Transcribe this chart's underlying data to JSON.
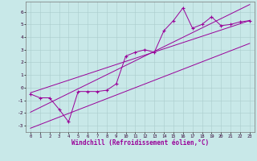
{
  "scatter_x": [
    0,
    1,
    2,
    3,
    4,
    5,
    6,
    7,
    8,
    9,
    10,
    11,
    12,
    13,
    14,
    15,
    16,
    17,
    18,
    19,
    20,
    21,
    22,
    23
  ],
  "scatter_y": [
    -0.5,
    -0.8,
    -0.8,
    -1.7,
    -2.7,
    -0.3,
    -0.3,
    -0.3,
    -0.2,
    0.3,
    2.5,
    2.8,
    3.0,
    2.8,
    4.5,
    5.3,
    6.3,
    4.7,
    5.0,
    5.6,
    4.9,
    5.0,
    5.2,
    5.3
  ],
  "line_color": "#990099",
  "bg_color": "#c8e8e8",
  "grid_color": "#aacccc",
  "xlabel": "Windchill (Refroidissement éolien,°C)",
  "xlabel_fontsize": 5.5,
  "xlim": [
    -0.5,
    23.5
  ],
  "ylim": [
    -3.5,
    6.8
  ],
  "yticks": [
    -3,
    -2,
    -1,
    0,
    1,
    2,
    3,
    4,
    5,
    6
  ],
  "xticks": [
    0,
    1,
    2,
    3,
    4,
    5,
    6,
    7,
    8,
    9,
    10,
    11,
    12,
    13,
    14,
    15,
    16,
    17,
    18,
    19,
    20,
    21,
    22,
    23
  ],
  "upper_line": [
    -3.0,
    5.3
  ],
  "lower_line": [
    -3.5,
    3.0
  ],
  "reg_line": [
    -3.2,
    4.2
  ]
}
